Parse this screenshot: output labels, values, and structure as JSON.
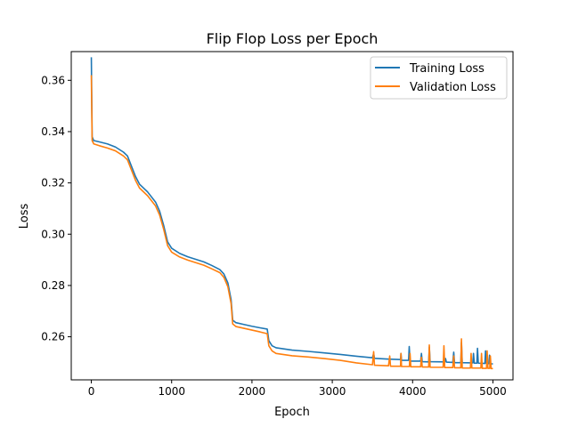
{
  "chart_data": {
    "type": "line",
    "title": "Flip Flop Loss per Epoch",
    "xlabel": "Epoch",
    "ylabel": "Loss",
    "xlim": [
      -250,
      5250
    ],
    "ylim": [
      0.2432,
      0.3712
    ],
    "xticks": [
      0,
      1000,
      2000,
      3000,
      4000,
      5000
    ],
    "yticks": [
      0.26,
      0.28,
      0.3,
      0.32,
      0.34,
      0.36
    ],
    "ytick_labels": [
      "0.26",
      "0.28",
      "0.30",
      "0.32",
      "0.34",
      "0.36"
    ],
    "grid": false,
    "legend": "top-right",
    "series": [
      {
        "name": "Training Loss",
        "color": "#1f77b4",
        "points": [
          [
            0,
            0.369
          ],
          [
            10,
            0.338
          ],
          [
            30,
            0.3365
          ],
          [
            100,
            0.336
          ],
          [
            200,
            0.3352
          ],
          [
            300,
            0.334
          ],
          [
            400,
            0.332
          ],
          [
            450,
            0.3305
          ],
          [
            500,
            0.3265
          ],
          [
            550,
            0.3225
          ],
          [
            600,
            0.3195
          ],
          [
            700,
            0.3165
          ],
          [
            800,
            0.3125
          ],
          [
            850,
            0.309
          ],
          [
            900,
            0.3035
          ],
          [
            950,
            0.297
          ],
          [
            1000,
            0.2945
          ],
          [
            1100,
            0.2925
          ],
          [
            1200,
            0.2912
          ],
          [
            1300,
            0.2902
          ],
          [
            1400,
            0.2892
          ],
          [
            1500,
            0.2878
          ],
          [
            1600,
            0.2862
          ],
          [
            1650,
            0.2845
          ],
          [
            1700,
            0.281
          ],
          [
            1740,
            0.2745
          ],
          [
            1760,
            0.2665
          ],
          [
            1800,
            0.2655
          ],
          [
            1900,
            0.2648
          ],
          [
            2000,
            0.2641
          ],
          [
            2100,
            0.2635
          ],
          [
            2190,
            0.263
          ],
          [
            2210,
            0.2585
          ],
          [
            2250,
            0.2565
          ],
          [
            2300,
            0.2557
          ],
          [
            2500,
            0.2548
          ],
          [
            2700,
            0.2543
          ],
          [
            2900,
            0.2537
          ],
          [
            3100,
            0.2531
          ],
          [
            3300,
            0.2524
          ],
          [
            3500,
            0.2518
          ],
          [
            3515,
            0.2535
          ],
          [
            3525,
            0.2516
          ],
          [
            3700,
            0.2513
          ],
          [
            3850,
            0.2511
          ],
          [
            3855,
            0.2535
          ],
          [
            3862,
            0.2508
          ],
          [
            3950,
            0.2508
          ],
          [
            3958,
            0.2562
          ],
          [
            3968,
            0.2505
          ],
          [
            4100,
            0.2505
          ],
          [
            4110,
            0.2535
          ],
          [
            4120,
            0.2503
          ],
          [
            4200,
            0.2502
          ],
          [
            4208,
            0.256
          ],
          [
            4218,
            0.2503
          ],
          [
            4400,
            0.2502
          ],
          [
            4410,
            0.2515
          ],
          [
            4420,
            0.2501
          ],
          [
            4500,
            0.25
          ],
          [
            4512,
            0.254
          ],
          [
            4522,
            0.2499
          ],
          [
            4600,
            0.2499
          ],
          [
            4608,
            0.2578
          ],
          [
            4618,
            0.2499
          ],
          [
            4750,
            0.2498
          ],
          [
            4758,
            0.2535
          ],
          [
            4768,
            0.2497
          ],
          [
            4800,
            0.2497
          ],
          [
            4808,
            0.2555
          ],
          [
            4818,
            0.2497
          ],
          [
            4900,
            0.2496
          ],
          [
            4908,
            0.2545
          ],
          [
            4918,
            0.2496
          ],
          [
            4950,
            0.2495
          ],
          [
            4958,
            0.2528
          ],
          [
            4968,
            0.2495
          ],
          [
            5000,
            0.2494
          ]
        ]
      },
      {
        "name": "Validation Loss",
        "color": "#ff7f0e",
        "points": [
          [
            0,
            0.362
          ],
          [
            10,
            0.3365
          ],
          [
            30,
            0.3352
          ],
          [
            100,
            0.3345
          ],
          [
            200,
            0.3336
          ],
          [
            300,
            0.3325
          ],
          [
            400,
            0.3305
          ],
          [
            450,
            0.329
          ],
          [
            500,
            0.325
          ],
          [
            550,
            0.321
          ],
          [
            600,
            0.318
          ],
          [
            700,
            0.315
          ],
          [
            800,
            0.311
          ],
          [
            850,
            0.3075
          ],
          [
            900,
            0.302
          ],
          [
            950,
            0.2955
          ],
          [
            1000,
            0.293
          ],
          [
            1100,
            0.2911
          ],
          [
            1200,
            0.2899
          ],
          [
            1300,
            0.2889
          ],
          [
            1400,
            0.2879
          ],
          [
            1500,
            0.2865
          ],
          [
            1600,
            0.285
          ],
          [
            1650,
            0.2832
          ],
          [
            1700,
            0.2795
          ],
          [
            1740,
            0.273
          ],
          [
            1760,
            0.265
          ],
          [
            1800,
            0.264
          ],
          [
            1900,
            0.2633
          ],
          [
            2000,
            0.2626
          ],
          [
            2100,
            0.2619
          ],
          [
            2190,
            0.2612
          ],
          [
            2210,
            0.2565
          ],
          [
            2250,
            0.2545
          ],
          [
            2300,
            0.2535
          ],
          [
            2500,
            0.2526
          ],
          [
            2700,
            0.2521
          ],
          [
            2900,
            0.2515
          ],
          [
            3100,
            0.2508
          ],
          [
            3300,
            0.2498
          ],
          [
            3500,
            0.2491
          ],
          [
            3515,
            0.2542
          ],
          [
            3525,
            0.2489
          ],
          [
            3700,
            0.2487
          ],
          [
            3715,
            0.2525
          ],
          [
            3725,
            0.2485
          ],
          [
            3850,
            0.2485
          ],
          [
            3855,
            0.2535
          ],
          [
            3862,
            0.2484
          ],
          [
            3960,
            0.2484
          ],
          [
            3968,
            0.2535
          ],
          [
            3978,
            0.2483
          ],
          [
            4100,
            0.2483
          ],
          [
            4110,
            0.252
          ],
          [
            4120,
            0.2482
          ],
          [
            4200,
            0.2482
          ],
          [
            4208,
            0.2568
          ],
          [
            4218,
            0.2481
          ],
          [
            4380,
            0.2481
          ],
          [
            4390,
            0.2565
          ],
          [
            4400,
            0.248
          ],
          [
            4500,
            0.248
          ],
          [
            4512,
            0.2525
          ],
          [
            4522,
            0.2479
          ],
          [
            4600,
            0.2479
          ],
          [
            4608,
            0.2592
          ],
          [
            4618,
            0.2478
          ],
          [
            4720,
            0.2478
          ],
          [
            4728,
            0.2535
          ],
          [
            4738,
            0.2478
          ],
          [
            4850,
            0.2478
          ],
          [
            4858,
            0.2535
          ],
          [
            4868,
            0.2477
          ],
          [
            4920,
            0.2477
          ],
          [
            4928,
            0.2545
          ],
          [
            4938,
            0.2477
          ],
          [
            4960,
            0.2477
          ],
          [
            4968,
            0.2525
          ],
          [
            4978,
            0.2476
          ],
          [
            5000,
            0.2476
          ]
        ]
      }
    ]
  }
}
